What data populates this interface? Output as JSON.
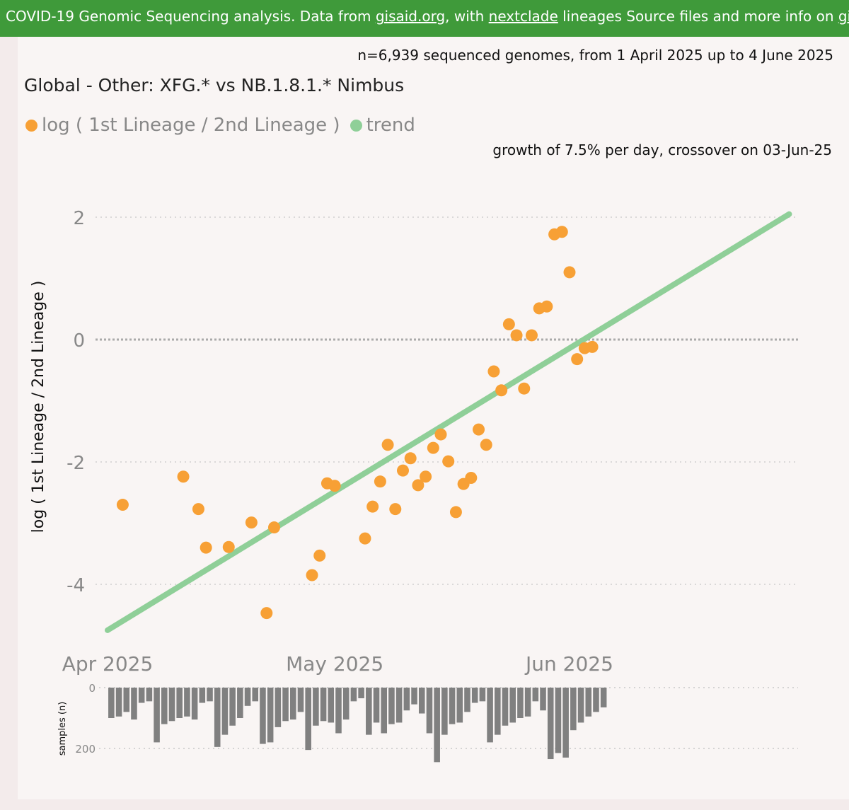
{
  "banner": {
    "text_1": "COVID-19 Genomic Sequencing analysis. Data from ",
    "link_gisaid": "gisaid.org",
    "text_2": ", with ",
    "link_nextclade": "nextclade",
    "text_3": " lineages Source files and more info on ",
    "link_github": "github"
  },
  "subtitle_n": "n=6,939 sequenced genomes, from 1 April 2025 up to 4 June 2025",
  "growth_text": "growth of 7.5% per day, crossover on 03-Jun-25",
  "colors": {
    "banner": "#3f9a3a",
    "points": "#f7a035",
    "trend": "#8fcf98",
    "bars": "#808080"
  },
  "chart_data": [
    {
      "type": "scatter",
      "title": "Global - Other: XFG.* vs NB.1.8.1.* Nimbus",
      "ylabel": "log ( 1st Lineage / 2nd Lineage )",
      "xlabel": "",
      "x_ticks": [
        "Apr 2025",
        "May 2025",
        "Jun 2025"
      ],
      "x_tick_dates": [
        "2025-04-01",
        "2025-05-01",
        "2025-06-01"
      ],
      "xlim": [
        "2025-03-31",
        "2025-06-30"
      ],
      "y_ticks": [
        2,
        0,
        -2,
        -4
      ],
      "ylim": [
        -4.9,
        2.5
      ],
      "grid": "horizontal dotted",
      "legend": [
        "log ( 1st Lineage / 2nd Lineage )",
        "trend"
      ],
      "legend_position": "top-left",
      "series": [
        {
          "name": "log ( 1st Lineage / 2nd Lineage )",
          "points": [
            {
              "x": "2025-04-03",
              "y": -2.7
            },
            {
              "x": "2025-04-11",
              "y": -2.24
            },
            {
              "x": "2025-04-13",
              "y": -2.77
            },
            {
              "x": "2025-04-14",
              "y": -3.4
            },
            {
              "x": "2025-04-17",
              "y": -3.39
            },
            {
              "x": "2025-04-20",
              "y": -2.99
            },
            {
              "x": "2025-04-22",
              "y": -4.47
            },
            {
              "x": "2025-04-23",
              "y": -3.07
            },
            {
              "x": "2025-04-28",
              "y": -3.85
            },
            {
              "x": "2025-04-29",
              "y": -3.53
            },
            {
              "x": "2025-04-30",
              "y": -2.35
            },
            {
              "x": "2025-05-01",
              "y": -2.39
            },
            {
              "x": "2025-05-05",
              "y": -3.25
            },
            {
              "x": "2025-05-06",
              "y": -2.73
            },
            {
              "x": "2025-05-07",
              "y": -2.32
            },
            {
              "x": "2025-05-08",
              "y": -1.72
            },
            {
              "x": "2025-05-09",
              "y": -2.77
            },
            {
              "x": "2025-05-10",
              "y": -2.14
            },
            {
              "x": "2025-05-11",
              "y": -1.94
            },
            {
              "x": "2025-05-12",
              "y": -2.38
            },
            {
              "x": "2025-05-13",
              "y": -2.24
            },
            {
              "x": "2025-05-14",
              "y": -1.77
            },
            {
              "x": "2025-05-15",
              "y": -1.55
            },
            {
              "x": "2025-05-16",
              "y": -1.99
            },
            {
              "x": "2025-05-17",
              "y": -2.82
            },
            {
              "x": "2025-05-18",
              "y": -2.36
            },
            {
              "x": "2025-05-19",
              "y": -2.26
            },
            {
              "x": "2025-05-20",
              "y": -1.47
            },
            {
              "x": "2025-05-21",
              "y": -1.72
            },
            {
              "x": "2025-05-22",
              "y": -0.52
            },
            {
              "x": "2025-05-23",
              "y": -0.83
            },
            {
              "x": "2025-05-24",
              "y": 0.25
            },
            {
              "x": "2025-05-25",
              "y": 0.07
            },
            {
              "x": "2025-05-26",
              "y": -0.8
            },
            {
              "x": "2025-05-27",
              "y": 0.07
            },
            {
              "x": "2025-05-28",
              "y": 0.51
            },
            {
              "x": "2025-05-29",
              "y": 0.54
            },
            {
              "x": "2025-05-30",
              "y": 1.72
            },
            {
              "x": "2025-05-31",
              "y": 1.76
            },
            {
              "x": "2025-06-01",
              "y": 1.1
            },
            {
              "x": "2025-06-02",
              "y": -0.32
            },
            {
              "x": "2025-06-03",
              "y": -0.14
            },
            {
              "x": "2025-06-04",
              "y": -0.12
            }
          ]
        },
        {
          "name": "trend",
          "type": "line",
          "points": [
            {
              "x": "2025-04-01",
              "y": -4.75
            },
            {
              "x": "2025-06-30",
              "y": 2.05
            }
          ]
        }
      ]
    },
    {
      "type": "bar",
      "ylabel": "samples (n)",
      "y_ticks": [
        0,
        200
      ],
      "ylim": [
        0,
        250
      ],
      "orientation": "downward",
      "start_date": "2025-04-01",
      "values": [
        100,
        95,
        80,
        105,
        50,
        45,
        180,
        120,
        110,
        100,
        95,
        105,
        50,
        45,
        195,
        155,
        125,
        100,
        60,
        45,
        185,
        180,
        130,
        110,
        105,
        80,
        205,
        125,
        110,
        115,
        150,
        105,
        45,
        35,
        155,
        115,
        150,
        120,
        115,
        75,
        55,
        85,
        150,
        245,
        155,
        120,
        115,
        80,
        50,
        45,
        180,
        155,
        125,
        115,
        100,
        95,
        45,
        75,
        235,
        215,
        230,
        140,
        115,
        95,
        80,
        65
      ]
    }
  ]
}
